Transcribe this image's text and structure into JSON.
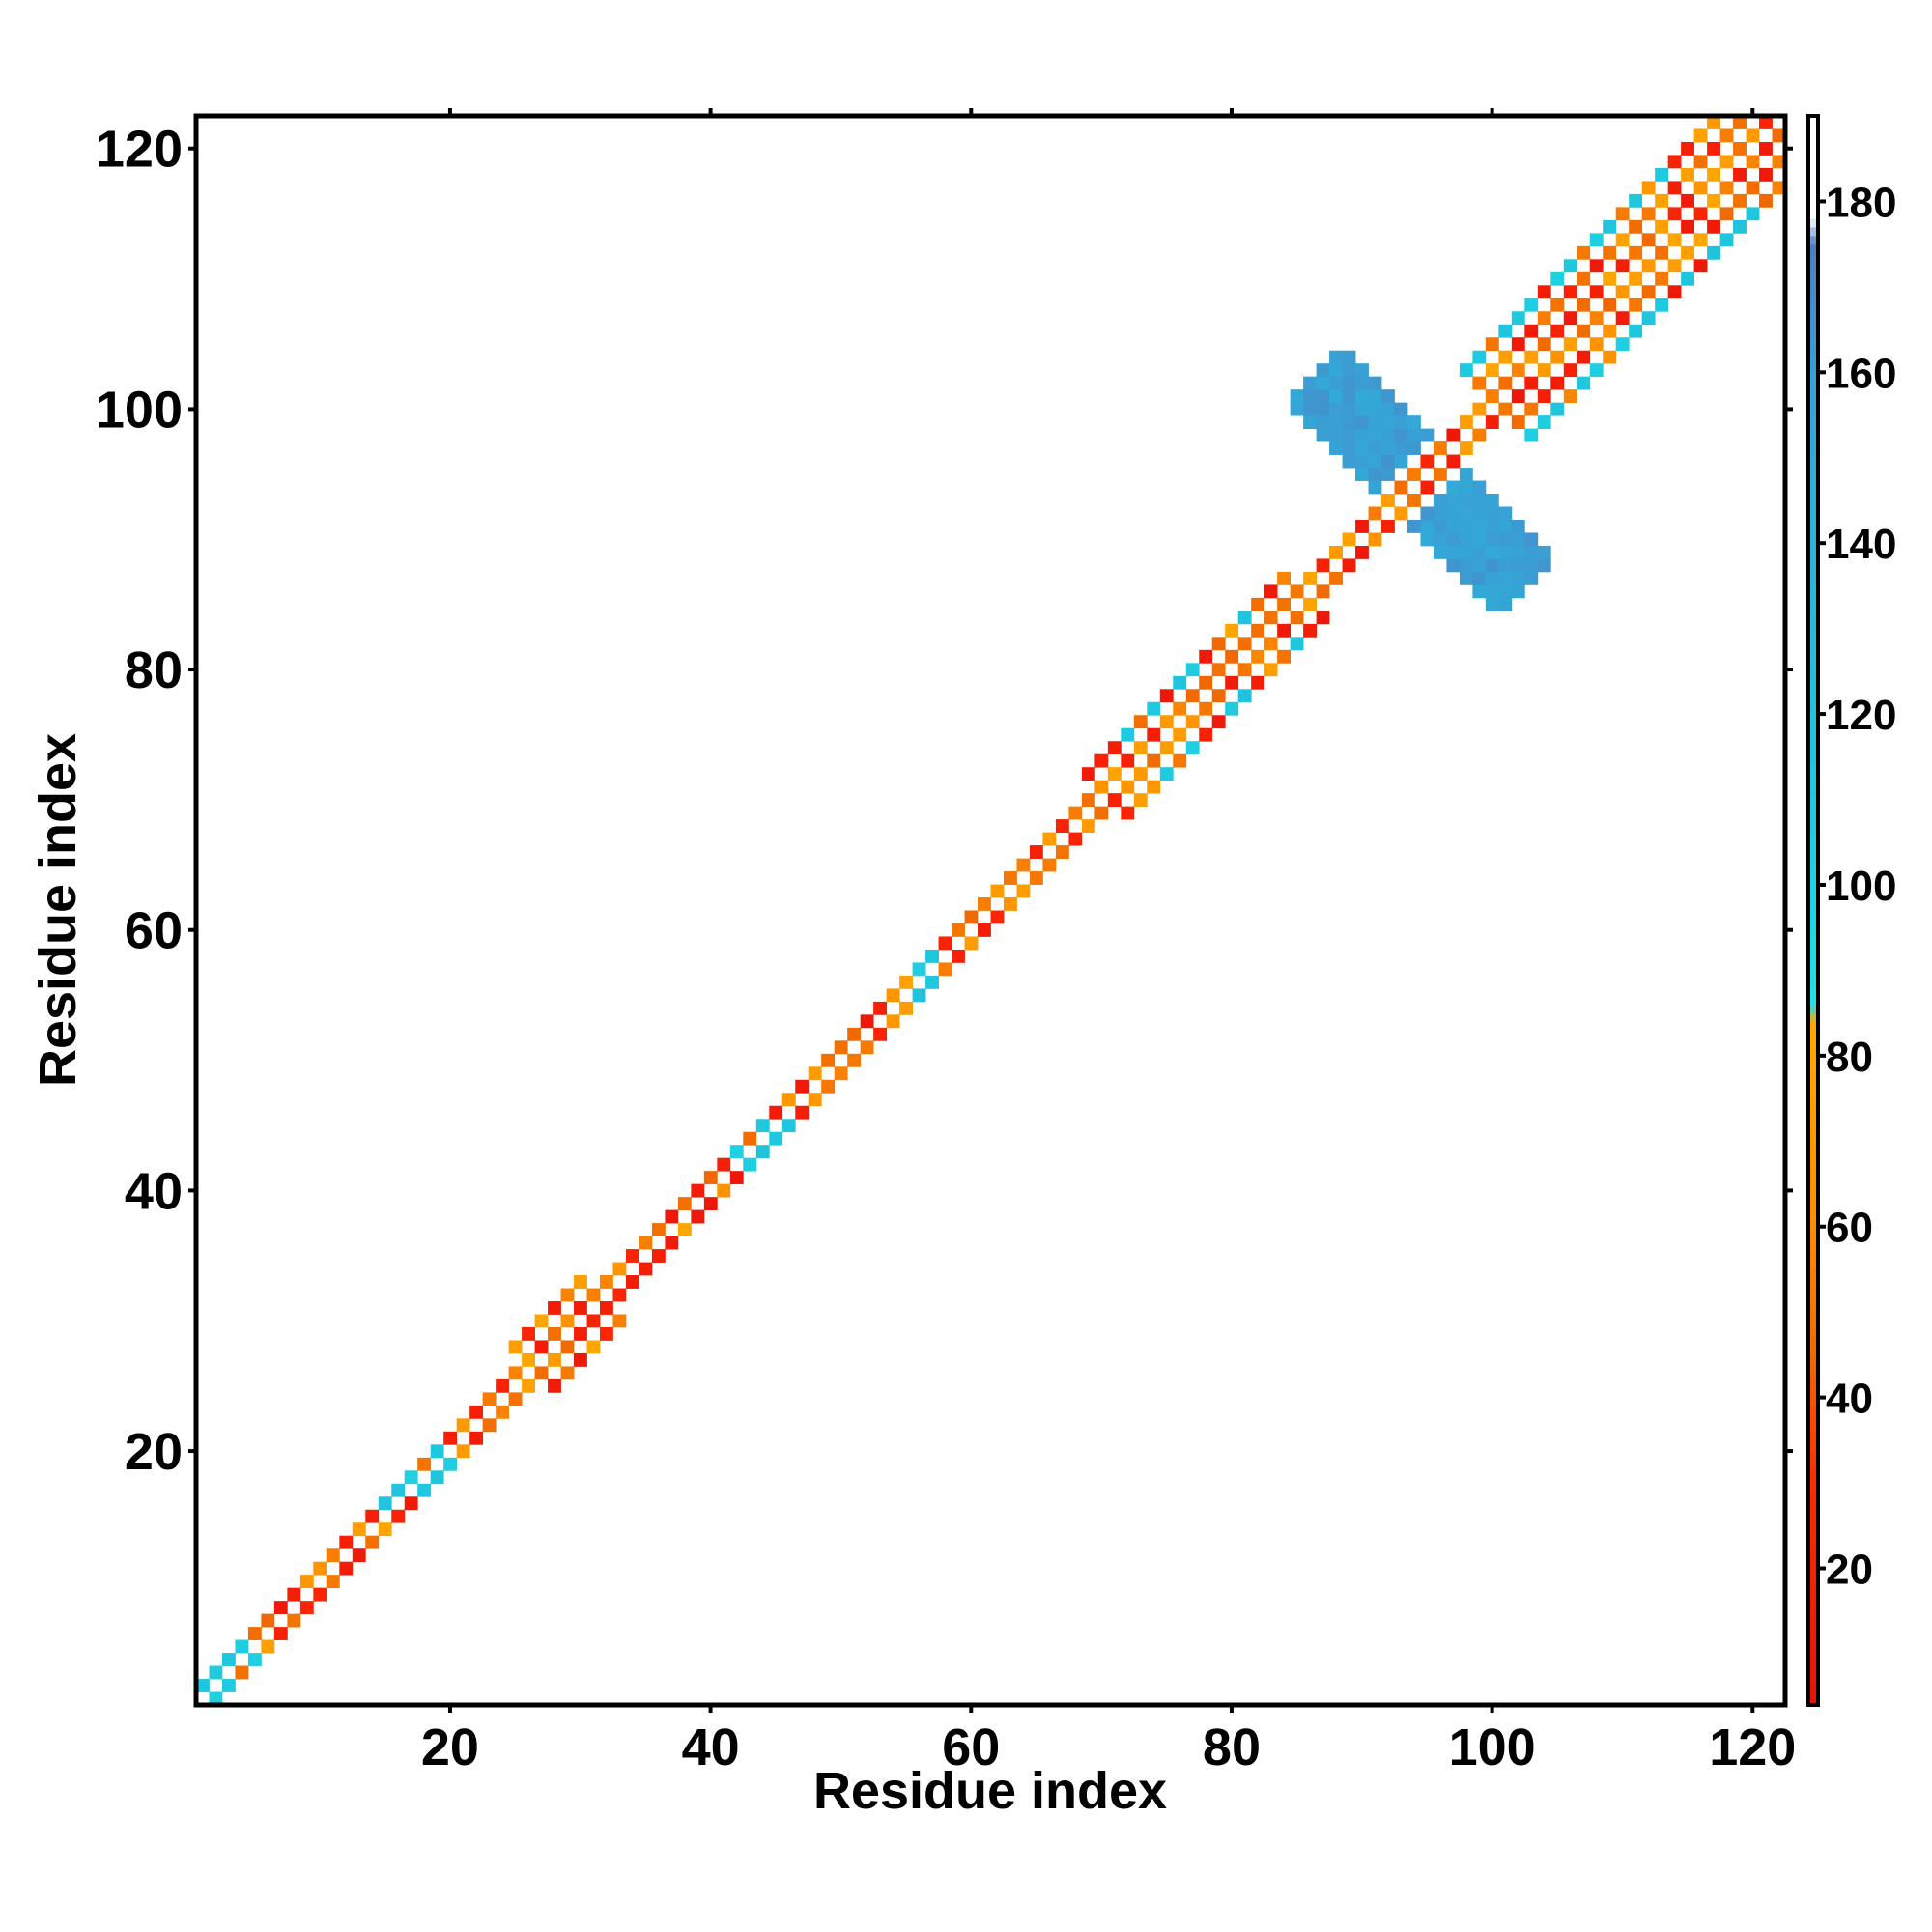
{
  "chart_data": {
    "type": "heatmap",
    "xlabel": "Residue index",
    "ylabel": "Residue index",
    "xlim": [
      1,
      122
    ],
    "ylim": [
      1,
      122
    ],
    "x_ticks": [
      20,
      40,
      60,
      80,
      100,
      120
    ],
    "y_ticks": [
      20,
      40,
      60,
      80,
      100,
      120
    ],
    "colorbar": {
      "range": [
        4,
        190
      ],
      "ticks": [
        20,
        40,
        60,
        80,
        100,
        120,
        140,
        160,
        180
      ],
      "stops": [
        {
          "value": 4,
          "color": "#e8120c"
        },
        {
          "value": 30,
          "color": "#ff2a00"
        },
        {
          "value": 45,
          "color": "#f06a00"
        },
        {
          "value": 60,
          "color": "#ff8c00"
        },
        {
          "value": 84,
          "color": "#ffaa00"
        },
        {
          "value": 86,
          "color": "#22dfe6"
        },
        {
          "value": 110,
          "color": "#1ec8de"
        },
        {
          "value": 140,
          "color": "#2ab4d8"
        },
        {
          "value": 160,
          "color": "#3a9ed4"
        },
        {
          "value": 175,
          "color": "#4f7fbf"
        },
        {
          "value": 178,
          "color": "#ffffff"
        },
        {
          "value": 190,
          "color": "#ffffff"
        }
      ]
    },
    "diagonal_value": 190,
    "default_value": 190,
    "band": {
      "default_halfwidth": 2,
      "wide_ranges": [
        {
          "from": 26,
          "to": 32,
          "halfwidth": 3
        },
        {
          "from": 70,
          "to": 86,
          "halfwidth": 4
        },
        {
          "from": 100,
          "to": 122,
          "halfwidth": 5
        }
      ],
      "cyan_ranges": [
        {
          "from": 1,
          "to": 5
        },
        {
          "from": 15,
          "to": 20
        },
        {
          "from": 41,
          "to": 46
        },
        {
          "from": 55,
          "to": 58
        },
        {
          "from": 73,
          "to": 84
        },
        {
          "from": 100,
          "to": 118
        }
      ],
      "blue_cross": {
        "center": 94.5,
        "arm_length": 8,
        "arm_width": 2
      }
    }
  }
}
